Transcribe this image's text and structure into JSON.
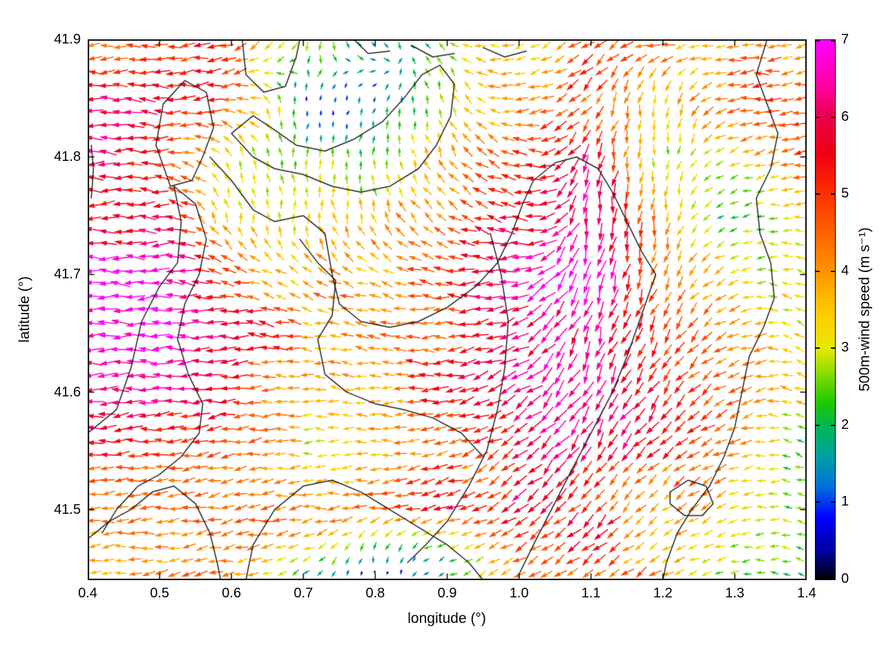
{
  "chart_data": {
    "type": "quiver",
    "title": "",
    "xlabel": "longitude (°)",
    "ylabel": "latitude (°)",
    "xlim": [
      0.4,
      1.4
    ],
    "ylim": [
      41.44,
      41.9
    ],
    "xticks": [
      0.4,
      0.5,
      0.6,
      0.7,
      0.8,
      0.9,
      1.0,
      1.1,
      1.2,
      1.3,
      1.4
    ],
    "xtick_labels": [
      "0.4",
      "0.5",
      "0.6",
      "0.7",
      "0.8",
      "0.9",
      "1.0",
      "1.1",
      "1.2",
      "1.3",
      "1.4"
    ],
    "yticks": [
      41.5,
      41.6,
      41.7,
      41.8,
      41.9
    ],
    "ytick_labels": [
      "41.5",
      "41.6",
      "41.7",
      "41.8",
      "41.9"
    ],
    "grid": false,
    "colorbar": {
      "label": "500m-wind speed (m s⁻¹)",
      "min": 0,
      "max": 7,
      "ticks": [
        0,
        1,
        2,
        3,
        4,
        5,
        6,
        7
      ],
      "tick_labels": [
        "0",
        "1",
        "2",
        "3",
        "4",
        "5",
        "6",
        "7"
      ],
      "stops": [
        [
          0.0,
          "#000000"
        ],
        [
          0.35,
          "#00009a"
        ],
        [
          0.8,
          "#0000ff"
        ],
        [
          1.2,
          "#0070dd"
        ],
        [
          1.6,
          "#00a0a0"
        ],
        [
          2.0,
          "#00b850"
        ],
        [
          2.3,
          "#20c800"
        ],
        [
          2.7,
          "#90dd00"
        ],
        [
          3.0,
          "#e8e800"
        ],
        [
          3.5,
          "#ffc800"
        ],
        [
          4.0,
          "#ff9400"
        ],
        [
          4.5,
          "#ff6000"
        ],
        [
          5.0,
          "#ff3000"
        ],
        [
          5.5,
          "#f00010"
        ],
        [
          6.0,
          "#e8004a"
        ],
        [
          6.4,
          "#ff00a0"
        ],
        [
          7.0,
          "#ff00ff"
        ]
      ]
    },
    "field": {
      "comment": "coarse estimate of the plotted 500m-wind field; speed in m/s, direction in degrees (0=E, 90=N, 180=W, 270=S), rows ordered by lat descending",
      "lon": [
        0.4,
        0.5,
        0.6,
        0.7,
        0.8,
        0.9,
        1.0,
        1.1,
        1.2,
        1.3,
        1.4
      ],
      "lat": [
        41.9,
        41.85,
        41.8,
        41.75,
        41.7,
        41.65,
        41.6,
        41.55,
        41.5,
        41.45
      ],
      "speed": [
        [
          4.5,
          5.5,
          5.0,
          3.0,
          1.2,
          2.5,
          3.5,
          4.5,
          4.0,
          3.6,
          4.0
        ],
        [
          6.0,
          6.5,
          4.5,
          1.5,
          0.8,
          3.0,
          4.2,
          5.0,
          3.2,
          4.4,
          5.0
        ],
        [
          6.8,
          5.0,
          3.0,
          2.2,
          2.5,
          3.8,
          4.8,
          5.8,
          2.8,
          3.4,
          4.6
        ],
        [
          6.2,
          5.5,
          3.5,
          2.8,
          3.2,
          4.2,
          5.5,
          6.6,
          4.0,
          1.8,
          2.6
        ],
        [
          6.8,
          6.5,
          4.8,
          3.8,
          4.2,
          4.8,
          6.2,
          6.9,
          4.6,
          3.4,
          2.4
        ],
        [
          6.8,
          6.8,
          5.5,
          4.2,
          4.6,
          5.2,
          6.4,
          6.8,
          5.0,
          3.8,
          3.0
        ],
        [
          6.5,
          6.2,
          5.0,
          3.8,
          4.2,
          5.0,
          5.8,
          6.4,
          5.4,
          4.4,
          3.0
        ],
        [
          5.5,
          5.0,
          4.2,
          3.2,
          3.5,
          4.2,
          5.2,
          6.0,
          4.8,
          3.8,
          2.4
        ],
        [
          4.5,
          4.8,
          4.5,
          4.2,
          4.5,
          5.2,
          6.2,
          5.2,
          4.2,
          3.2,
          2.8
        ],
        [
          4.0,
          4.2,
          4.0,
          2.0,
          0.8,
          2.0,
          4.5,
          4.8,
          3.8,
          2.8,
          2.4
        ]
      ],
      "direction_deg": [
        [
          185,
          180,
          195,
          250,
          300,
          140,
          200,
          220,
          185,
          185,
          190
        ],
        [
          180,
          180,
          190,
          80,
          60,
          110,
          185,
          230,
          270,
          185,
          190
        ],
        [
          180,
          180,
          120,
          90,
          90,
          120,
          165,
          250,
          270,
          200,
          185
        ],
        [
          180,
          180,
          100,
          90,
          110,
          145,
          175,
          260,
          265,
          200,
          170
        ],
        [
          180,
          180,
          170,
          150,
          160,
          170,
          195,
          258,
          252,
          195,
          160
        ],
        [
          180,
          180,
          180,
          170,
          172,
          182,
          208,
          252,
          242,
          205,
          150
        ],
        [
          182,
          182,
          185,
          178,
          177,
          186,
          212,
          246,
          232,
          208,
          158
        ],
        [
          183,
          186,
          190,
          180,
          182,
          192,
          218,
          238,
          226,
          200,
          152
        ],
        [
          184,
          186,
          190,
          186,
          188,
          198,
          216,
          228,
          218,
          198,
          168
        ],
        [
          182,
          186,
          192,
          210,
          270,
          205,
          212,
          218,
          210,
          190,
          162
        ]
      ]
    },
    "contours_lonlat": [
      [
        [
          0.515,
          41.775
        ],
        [
          0.495,
          41.81
        ],
        [
          0.505,
          41.845
        ],
        [
          0.535,
          41.865
        ],
        [
          0.565,
          41.855
        ],
        [
          0.575,
          41.825
        ],
        [
          0.56,
          41.8
        ],
        [
          0.545,
          41.78
        ],
        [
          0.515,
          41.775
        ]
      ],
      [
        [
          0.615,
          41.9
        ],
        [
          0.62,
          41.87
        ],
        [
          0.645,
          41.855
        ],
        [
          0.675,
          41.86
        ],
        [
          0.69,
          41.885
        ],
        [
          0.695,
          41.9
        ]
      ],
      [
        [
          0.6,
          41.82
        ],
        [
          0.63,
          41.835
        ],
        [
          0.655,
          41.825
        ],
        [
          0.69,
          41.81
        ],
        [
          0.73,
          41.805
        ],
        [
          0.77,
          41.815
        ],
        [
          0.81,
          41.83
        ],
        [
          0.84,
          41.85
        ],
        [
          0.865,
          41.87
        ],
        [
          0.89,
          41.878
        ],
        [
          0.91,
          41.862
        ],
        [
          0.905,
          41.835
        ],
        [
          0.885,
          41.81
        ],
        [
          0.86,
          41.79
        ],
        [
          0.82,
          41.775
        ],
        [
          0.78,
          41.77
        ],
        [
          0.74,
          41.775
        ],
        [
          0.7,
          41.785
        ],
        [
          0.66,
          41.79
        ],
        [
          0.63,
          41.8
        ],
        [
          0.6,
          41.82
        ]
      ],
      [
        [
          0.4,
          41.565
        ],
        [
          0.44,
          41.585
        ],
        [
          0.46,
          41.62
        ],
        [
          0.475,
          41.66
        ],
        [
          0.5,
          41.69
        ],
        [
          0.525,
          41.71
        ],
        [
          0.53,
          41.745
        ],
        [
          0.52,
          41.775
        ]
      ],
      [
        [
          0.52,
          41.775
        ],
        [
          0.55,
          41.76
        ],
        [
          0.565,
          41.73
        ],
        [
          0.555,
          41.7
        ],
        [
          0.535,
          41.675
        ],
        [
          0.525,
          41.645
        ],
        [
          0.54,
          41.615
        ],
        [
          0.56,
          41.59
        ],
        [
          0.555,
          41.565
        ],
        [
          0.53,
          41.545
        ],
        [
          0.5,
          41.53
        ],
        [
          0.47,
          41.52
        ],
        [
          0.44,
          41.5
        ],
        [
          0.42,
          41.48
        ]
      ],
      [
        [
          0.57,
          41.8
        ],
        [
          0.6,
          41.78
        ],
        [
          0.63,
          41.755
        ],
        [
          0.66,
          41.745
        ],
        [
          0.7,
          41.75
        ],
        [
          0.73,
          41.735
        ],
        [
          0.74,
          41.7
        ],
        [
          0.75,
          41.675
        ],
        [
          0.78,
          41.66
        ],
        [
          0.82,
          41.655
        ],
        [
          0.86,
          41.66
        ],
        [
          0.9,
          41.672
        ],
        [
          0.94,
          41.69
        ],
        [
          0.97,
          41.71
        ],
        [
          0.99,
          41.735
        ],
        [
          1.005,
          41.76
        ],
        [
          1.02,
          41.78
        ],
        [
          1.05,
          41.795
        ],
        [
          1.08,
          41.8
        ],
        [
          1.11,
          41.79
        ],
        [
          1.13,
          41.77
        ],
        [
          1.15,
          41.745
        ],
        [
          1.17,
          41.72
        ],
        [
          1.19,
          41.7
        ]
      ],
      [
        [
          1.19,
          41.7
        ],
        [
          1.17,
          41.665
        ],
        [
          1.15,
          41.63
        ],
        [
          1.13,
          41.6
        ],
        [
          1.1,
          41.565
        ],
        [
          1.07,
          41.53
        ],
        [
          1.045,
          41.5
        ],
        [
          1.02,
          41.47
        ],
        [
          1.0,
          41.445
        ]
      ],
      [
        [
          0.96,
          41.735
        ],
        [
          0.975,
          41.7
        ],
        [
          0.985,
          41.66
        ],
        [
          0.98,
          41.62
        ],
        [
          0.97,
          41.585
        ],
        [
          0.955,
          41.55
        ],
        [
          0.93,
          41.52
        ],
        [
          0.9,
          41.49
        ],
        [
          0.87,
          41.47
        ],
        [
          0.845,
          41.455
        ]
      ],
      [
        [
          0.695,
          41.73
        ],
        [
          0.72,
          41.71
        ],
        [
          0.745,
          41.695
        ],
        [
          0.74,
          41.665
        ],
        [
          0.72,
          41.645
        ],
        [
          0.73,
          41.615
        ],
        [
          0.76,
          41.6
        ],
        [
          0.8,
          41.59
        ],
        [
          0.84,
          41.585
        ],
        [
          0.88,
          41.578
        ],
        [
          0.92,
          41.565
        ],
        [
          0.95,
          41.545
        ]
      ],
      [
        [
          0.62,
          41.44
        ],
        [
          0.63,
          41.47
        ],
        [
          0.66,
          41.5
        ],
        [
          0.7,
          41.52
        ],
        [
          0.74,
          41.525
        ],
        [
          0.78,
          41.515
        ],
        [
          0.82,
          41.5
        ],
        [
          0.86,
          41.485
        ],
        [
          0.9,
          41.47
        ],
        [
          0.93,
          41.455
        ],
        [
          0.95,
          41.44
        ]
      ],
      [
        [
          0.4,
          41.475
        ],
        [
          0.43,
          41.49
        ],
        [
          0.46,
          41.5
        ],
        [
          0.49,
          41.515
        ],
        [
          0.52,
          41.52
        ],
        [
          0.55,
          41.505
        ],
        [
          0.57,
          41.48
        ],
        [
          0.58,
          41.455
        ],
        [
          0.585,
          41.44
        ]
      ],
      [
        [
          1.345,
          41.9
        ],
        [
          1.33,
          41.87
        ],
        [
          1.345,
          41.845
        ],
        [
          1.36,
          41.82
        ],
        [
          1.35,
          41.79
        ],
        [
          1.33,
          41.765
        ],
        [
          1.335,
          41.735
        ],
        [
          1.35,
          41.71
        ],
        [
          1.355,
          41.68
        ],
        [
          1.34,
          41.655
        ],
        [
          1.32,
          41.63
        ],
        [
          1.31,
          41.6
        ],
        [
          1.3,
          41.57
        ],
        [
          1.285,
          41.545
        ],
        [
          1.265,
          41.52
        ],
        [
          1.24,
          41.5
        ],
        [
          1.22,
          41.48
        ],
        [
          1.205,
          41.455
        ],
        [
          1.2,
          41.44
        ]
      ],
      [
        [
          1.21,
          41.515
        ],
        [
          1.235,
          41.525
        ],
        [
          1.26,
          41.52
        ],
        [
          1.27,
          41.505
        ],
        [
          1.255,
          41.495
        ],
        [
          1.23,
          41.495
        ],
        [
          1.21,
          41.505
        ],
        [
          1.21,
          41.515
        ]
      ],
      [
        [
          0.85,
          41.895
        ],
        [
          0.88,
          41.885
        ],
        [
          0.91,
          41.888
        ]
      ],
      [
        [
          0.95,
          41.893
        ],
        [
          0.98,
          41.885
        ],
        [
          1.01,
          41.89
        ]
      ],
      [
        [
          0.77,
          41.9
        ],
        [
          0.79,
          41.888
        ],
        [
          0.82,
          41.89
        ]
      ],
      [
        [
          0.405,
          41.765
        ],
        [
          0.408,
          41.79
        ],
        [
          0.405,
          41.81
        ]
      ]
    ],
    "render": {
      "cols": 54,
      "rows": 41,
      "len_base": 5,
      "len_scale": 3.6,
      "line_width": 1.6,
      "contour_color": "#1c1c1c"
    }
  }
}
